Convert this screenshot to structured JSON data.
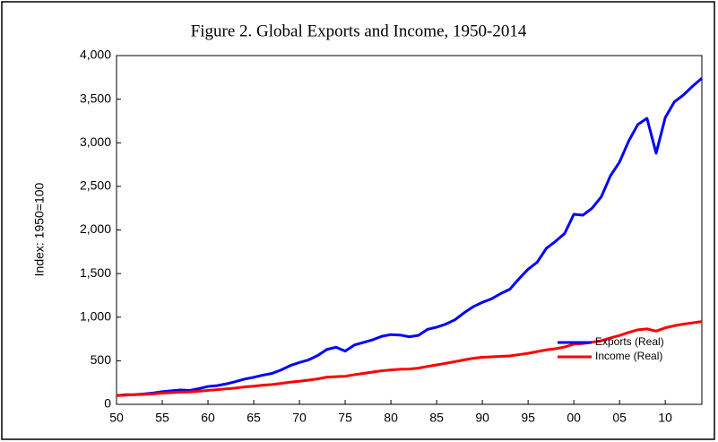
{
  "chart_data": {
    "type": "line",
    "title": "Figure 2. Global Exports and Income, 1950-2014",
    "y_label": "Index: 1950=100",
    "x": [
      1950,
      1951,
      1952,
      1953,
      1954,
      1955,
      1956,
      1957,
      1958,
      1959,
      1960,
      1961,
      1962,
      1963,
      1964,
      1965,
      1966,
      1967,
      1968,
      1969,
      1970,
      1971,
      1972,
      1973,
      1974,
      1975,
      1976,
      1977,
      1978,
      1979,
      1980,
      1981,
      1982,
      1983,
      1984,
      1985,
      1986,
      1987,
      1988,
      1989,
      1990,
      1991,
      1992,
      1993,
      1994,
      1995,
      1996,
      1997,
      1998,
      1999,
      2000,
      2001,
      2002,
      2003,
      2004,
      2005,
      2006,
      2007,
      2008,
      2009,
      2010,
      2011,
      2012,
      2013,
      2014
    ],
    "series": [
      {
        "name": "Exports (Real)",
        "color": "#0000ff",
        "values": [
          100,
          110,
          112,
          120,
          130,
          145,
          155,
          165,
          160,
          180,
          205,
          215,
          235,
          260,
          290,
          310,
          335,
          355,
          395,
          445,
          480,
          510,
          560,
          630,
          655,
          610,
          680,
          710,
          740,
          780,
          800,
          795,
          775,
          790,
          860,
          885,
          920,
          970,
          1050,
          1120,
          1170,
          1210,
          1270,
          1320,
          1440,
          1550,
          1630,
          1790,
          1870,
          1960,
          2180,
          2170,
          2250,
          2380,
          2620,
          2780,
          3020,
          3210,
          3280,
          2880,
          3290,
          3470,
          3550,
          3650,
          3740
        ]
      },
      {
        "name": "Income (Real)",
        "color": "#ff0000",
        "values": [
          100,
          105,
          110,
          115,
          120,
          128,
          135,
          140,
          143,
          150,
          160,
          168,
          178,
          186,
          200,
          208,
          220,
          228,
          240,
          255,
          265,
          278,
          292,
          312,
          318,
          322,
          340,
          355,
          370,
          385,
          395,
          402,
          405,
          415,
          435,
          452,
          470,
          490,
          510,
          528,
          540,
          545,
          550,
          555,
          570,
          585,
          605,
          625,
          638,
          658,
          690,
          698,
          712,
          730,
          762,
          790,
          825,
          855,
          865,
          840,
          878,
          902,
          920,
          935,
          950
        ]
      }
    ],
    "xlim": [
      1950,
      2014
    ],
    "xticks": [
      {
        "value": 1950,
        "label": "50"
      },
      {
        "value": 1955,
        "label": "55"
      },
      {
        "value": 1960,
        "label": "60"
      },
      {
        "value": 1965,
        "label": "65"
      },
      {
        "value": 1970,
        "label": "70"
      },
      {
        "value": 1975,
        "label": "75"
      },
      {
        "value": 1980,
        "label": "80"
      },
      {
        "value": 1985,
        "label": "85"
      },
      {
        "value": 1990,
        "label": "90"
      },
      {
        "value": 1995,
        "label": "95"
      },
      {
        "value": 2000,
        "label": "00"
      },
      {
        "value": 2005,
        "label": "05"
      },
      {
        "value": 2010,
        "label": "10"
      }
    ],
    "ylim": [
      0,
      4000
    ],
    "yticks": [
      0,
      500,
      {
        "value": 1000,
        "label": "1,000"
      },
      {
        "value": 1500,
        "label": "1,500"
      },
      {
        "value": 2000,
        "label": "2,000"
      },
      {
        "value": 2500,
        "label": "2,500"
      },
      {
        "value": 3000,
        "label": "3,000"
      },
      {
        "value": 3500,
        "label": "3,500"
      },
      {
        "value": 4000,
        "label": "4,000"
      }
    ],
    "grid": false,
    "legend": "lower right"
  }
}
